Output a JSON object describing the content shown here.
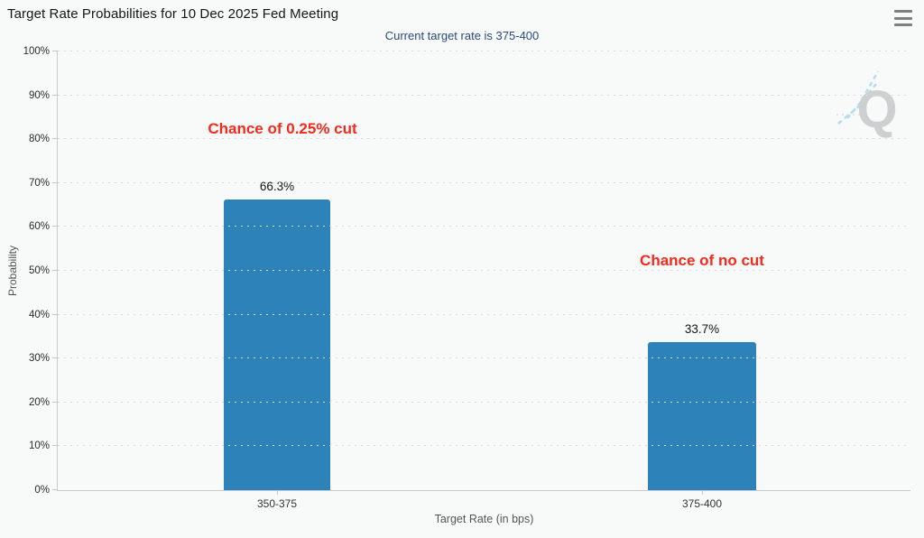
{
  "header": {
    "menu_icon": "hamburger-menu"
  },
  "watermark": {
    "letter": "Q"
  },
  "chart_data": {
    "type": "bar",
    "title": "Target Rate Probabilities for 10 Dec 2025 Fed Meeting",
    "subtitle": "Current target rate is 375-400",
    "categories": [
      "350-375",
      "375-400"
    ],
    "values": [
      66.3,
      33.7
    ],
    "bar_labels": [
      "66.3%",
      "33.7%"
    ],
    "bar_color": "#2d82ba",
    "xlabel": "Target Rate (in bps)",
    "ylabel": "Probability",
    "ylim": [
      0,
      100
    ],
    "yticks": [
      {
        "value": 0,
        "label": "0%"
      },
      {
        "value": 10,
        "label": "10%"
      },
      {
        "value": 20,
        "label": "20%"
      },
      {
        "value": 30,
        "label": "30%"
      },
      {
        "value": 40,
        "label": "40%"
      },
      {
        "value": 50,
        "label": "50%"
      },
      {
        "value": 60,
        "label": "60%"
      },
      {
        "value": 70,
        "label": "70%"
      },
      {
        "value": 80,
        "label": "80%"
      },
      {
        "value": 90,
        "label": "90%"
      },
      {
        "value": 100,
        "label": "100%"
      }
    ],
    "grid": "dotted-horizontal",
    "legend": "none",
    "annotations": [
      {
        "text": "Chance of 0.25% cut",
        "color": "#f42a1d",
        "target": "350-375"
      },
      {
        "text": "Chance of no cut",
        "color": "#f42a1d",
        "target": "375-400"
      }
    ]
  }
}
